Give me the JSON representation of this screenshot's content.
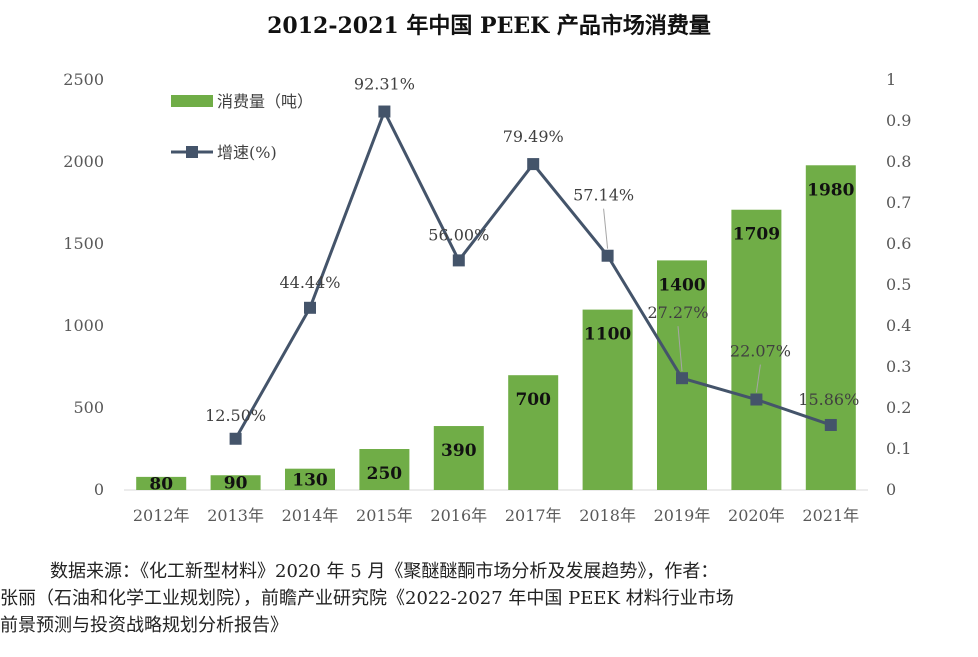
{
  "chart_data": {
    "type": "bar",
    "title": "2012-2021 年中国 PEEK 产品市场消费量",
    "categories": [
      "2012年",
      "2013年",
      "2014年",
      "2015年",
      "2016年",
      "2017年",
      "2018年",
      "2019年",
      "2020年",
      "2021年"
    ],
    "series": [
      {
        "name": "消费量（吨）",
        "type": "bar",
        "axis": "left",
        "color": "#70ad47",
        "values": [
          80,
          90,
          130,
          250,
          390,
          700,
          1100,
          1400,
          1709,
          1980
        ],
        "labels": [
          "80",
          "90",
          "130",
          "250",
          "390",
          "700",
          "1100",
          "1400",
          "1709",
          "1980"
        ]
      },
      {
        "name": "增速(%)",
        "type": "line",
        "axis": "right",
        "color": "#44546a",
        "values": [
          null,
          0.125,
          0.4444,
          0.9231,
          0.56,
          0.7949,
          0.5714,
          0.2727,
          0.2207,
          0.1586
        ],
        "labels": [
          null,
          "12.50%",
          "44.44%",
          "92.31%",
          "56.00%",
          "79.49%",
          "57.14%",
          "27.27%",
          "22.07%",
          "15.86%"
        ]
      }
    ],
    "y_left": {
      "min": 0,
      "max": 2500,
      "ticks": [
        "0",
        "500",
        "1000",
        "1500",
        "2000",
        "2500"
      ]
    },
    "y_right": {
      "min": 0,
      "max": 1,
      "ticks": [
        "0",
        "0.1",
        "0.2",
        "0.3",
        "0.4",
        "0.5",
        "0.6",
        "0.7",
        "0.8",
        "0.9",
        "1"
      ]
    },
    "grid": false,
    "legend": "top-left"
  },
  "source_note": {
    "line1": "数据来源：《化工新型材料》2020 年 5 月《聚醚醚酮市场分析及发展趋势》，作者：",
    "line2": "张丽（石油和化学工业规划院），前瞻产业研究院《2022-2027 年中国 PEEK 材料行业市场",
    "line3": "前景预测与投资战略规划分析报告》"
  }
}
